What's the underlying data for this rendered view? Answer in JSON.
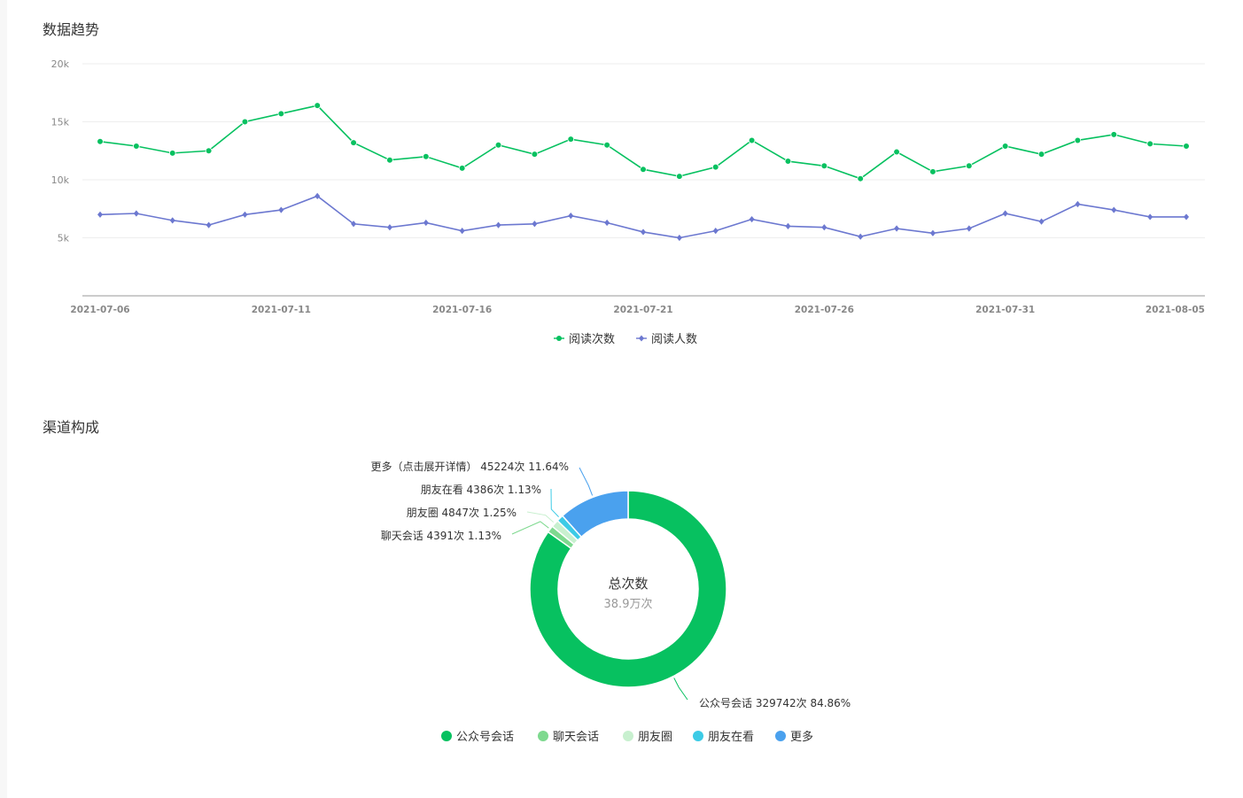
{
  "trend": {
    "title": "数据趋势"
  },
  "channel": {
    "title": "渠道构成"
  },
  "chart_data": [
    {
      "type": "line",
      "y_ticks": [
        "5k",
        "10k",
        "15k",
        "20k"
      ],
      "ylim": [
        0,
        20000
      ],
      "x_tick_labels": [
        "2021-07-06",
        "2021-07-11",
        "2021-07-16",
        "2021-07-21",
        "2021-07-26",
        "2021-07-31",
        "2021-08-05"
      ],
      "x": [
        "2021-07-06",
        "2021-07-07",
        "2021-07-08",
        "2021-07-09",
        "2021-07-10",
        "2021-07-11",
        "2021-07-12",
        "2021-07-13",
        "2021-07-14",
        "2021-07-15",
        "2021-07-16",
        "2021-07-17",
        "2021-07-18",
        "2021-07-19",
        "2021-07-20",
        "2021-07-21",
        "2021-07-22",
        "2021-07-23",
        "2021-07-24",
        "2021-07-25",
        "2021-07-26",
        "2021-07-27",
        "2021-07-28",
        "2021-07-29",
        "2021-07-30",
        "2021-07-31",
        "2021-08-01",
        "2021-08-02",
        "2021-08-03",
        "2021-08-04",
        "2021-08-05"
      ],
      "series": [
        {
          "name": "阅读次数",
          "color": "#07c160",
          "marker": "circle",
          "values": [
            13300,
            12900,
            12300,
            12500,
            15000,
            15700,
            16400,
            13200,
            11700,
            12000,
            11000,
            13000,
            12200,
            13500,
            13000,
            10900,
            10300,
            11100,
            13400,
            11600,
            11200,
            10100,
            12400,
            10700,
            11200,
            12900,
            12200,
            13400,
            13900,
            13100,
            12900
          ]
        },
        {
          "name": "阅读人数",
          "color": "#6c78d0",
          "marker": "diamond",
          "values": [
            7000,
            7100,
            6500,
            6100,
            7000,
            7400,
            8600,
            6200,
            5900,
            6300,
            5600,
            6100,
            6200,
            6900,
            6300,
            5500,
            5000,
            5600,
            6600,
            6000,
            5900,
            5100,
            5800,
            5400,
            5800,
            7100,
            6400,
            7900,
            7400,
            6800,
            6800
          ]
        }
      ],
      "legend": "bottom-center",
      "grid": true
    },
    {
      "type": "pie",
      "donut": true,
      "center_title": "总次数",
      "center_value": "38.9万次",
      "slices": [
        {
          "name": "公众号会话",
          "value": 329742,
          "label": "公众号会话 329742次 84.86%",
          "color": "#07c160"
        },
        {
          "name": "聊天会话",
          "value": 4391,
          "label": "聊天会话 4391次 1.13%",
          "color": "#7ed98f"
        },
        {
          "name": "朋友圈",
          "value": 4847,
          "label": "朋友圈 4847次 1.25%",
          "color": "#c8f0cf"
        },
        {
          "name": "朋友在看",
          "value": 4386,
          "label": "朋友在看 4386次 1.13%",
          "color": "#3ccbe6"
        },
        {
          "name": "更多",
          "value": 45224,
          "label": "更多（点击展开详情） 45224次 11.64%",
          "color": "#4aa1ee"
        }
      ],
      "legend": "bottom-center"
    }
  ]
}
